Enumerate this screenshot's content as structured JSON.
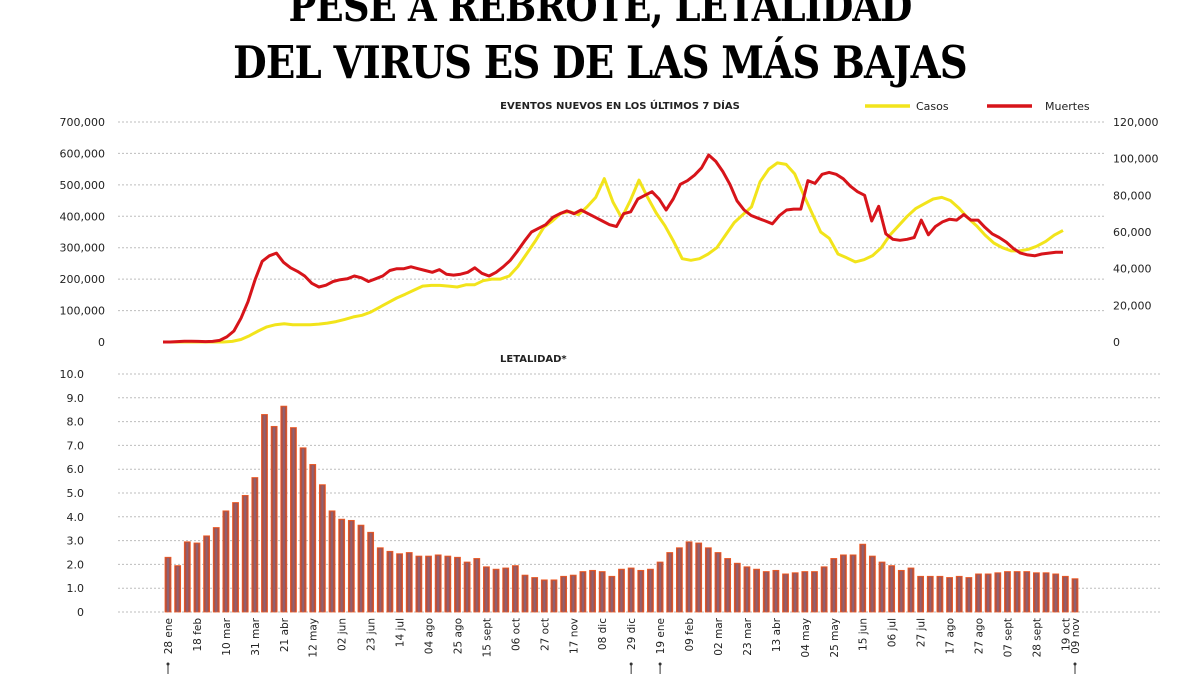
{
  "headline": {
    "line1": "PESE A REBROTE, LETALIDAD",
    "line2": "DEL VIRUS ES DE LAS MÁS BAJAS"
  },
  "chart_data": [
    {
      "type": "line",
      "title": "EVENTOS NUEVOS EN LOS ÚLTIMOS 7 DÍAS",
      "legend_position": "top-right",
      "grid": true,
      "left_axis": {
        "ylim": [
          0,
          700000
        ],
        "ticks": [
          "0",
          "100,000",
          "200,000",
          "300,000",
          "400,000",
          "500,000",
          "600,000",
          "700,000"
        ],
        "tick_values": [
          0,
          100000,
          200000,
          300000,
          400000,
          500000,
          600000,
          700000
        ]
      },
      "right_axis": {
        "ylim": [
          0,
          120000
        ],
        "ticks": [
          "0",
          "20,000",
          "40,000",
          "60,000",
          "80,000",
          "100,000",
          "120,000"
        ],
        "tick_values": [
          0,
          20000,
          40000,
          60000,
          80000,
          100000,
          120000
        ]
      },
      "series": [
        {
          "name": "Casos",
          "axis": "left",
          "color": "#f2e41b",
          "values": [
            0,
            0,
            0,
            0,
            0,
            0,
            0,
            0,
            2000,
            8000,
            20000,
            35000,
            48000,
            55000,
            58000,
            55000,
            55000,
            55000,
            57000,
            60000,
            65000,
            72000,
            80000,
            85000,
            95000,
            110000,
            125000,
            140000,
            152000,
            165000,
            178000,
            180000,
            180000,
            178000,
            175000,
            182000,
            182000,
            195000,
            200000,
            200000,
            210000,
            240000,
            280000,
            320000,
            365000,
            385000,
            410000,
            415000,
            405000,
            430000,
            460000,
            520000,
            445000,
            395000,
            450000,
            515000,
            460000,
            410000,
            370000,
            320000,
            265000,
            260000,
            265000,
            280000,
            300000,
            340000,
            380000,
            405000,
            430000,
            510000,
            550000,
            570000,
            565000,
            535000,
            470000,
            410000,
            350000,
            330000,
            280000,
            268000,
            255000,
            262000,
            275000,
            300000,
            340000,
            370000,
            400000,
            425000,
            440000,
            455000,
            460000,
            450000,
            425000,
            395000,
            370000,
            340000,
            315000,
            300000,
            290000,
            290000,
            295000,
            305000,
            320000,
            340000,
            355000
          ]
        },
        {
          "name": "Muertes",
          "axis": "right",
          "color": "#d7141a",
          "values": [
            0,
            0,
            200,
            400,
            400,
            300,
            200,
            300,
            900,
            2800,
            6000,
            13000,
            22000,
            34000,
            44000,
            47000,
            48500,
            43500,
            40500,
            38500,
            36000,
            32000,
            30000,
            31000,
            33000,
            34000,
            34500,
            36000,
            35000,
            33000,
            34500,
            36000,
            39000,
            40000,
            40000,
            41000,
            40000,
            39000,
            38000,
            39500,
            37000,
            36500,
            37000,
            38000,
            40500,
            37500,
            36000,
            38000,
            41000,
            44500,
            49500,
            55000,
            60000,
            62000,
            64000,
            68000,
            70000,
            71500,
            70000,
            72000,
            70000,
            68000,
            66000,
            64000,
            63000,
            70000,
            71000,
            78000,
            80000,
            82000,
            78000,
            72000,
            78000,
            86000,
            88000,
            91000,
            95000,
            102000,
            98500,
            93000,
            86000,
            77000,
            72000,
            69000,
            67500,
            66000,
            64500,
            69000,
            72000,
            72500,
            72500,
            88000,
            86500,
            91500,
            92500,
            91500,
            89000,
            85000,
            82000,
            80000,
            66000,
            74000,
            59000,
            56000,
            55500,
            56000,
            57000,
            66500,
            58500,
            63000,
            65500,
            67000,
            66500,
            69500,
            66500,
            66500,
            62500,
            59000,
            57000,
            54500,
            51000,
            48500,
            47500,
            47000,
            48000,
            48500,
            49000,
            49000
          ]
        }
      ]
    },
    {
      "type": "bar",
      "title": "LETALIDAD*",
      "grid": true,
      "ylim": [
        0,
        10
      ],
      "yticks": [
        "0",
        "1.0",
        "2.0",
        "3.0",
        "4.0",
        "5.0",
        "6.0",
        "7.0",
        "8.0",
        "9.0",
        "10.0"
      ],
      "ytick_values": [
        0,
        1,
        2,
        3,
        4,
        5,
        6,
        7,
        8,
        9,
        10
      ],
      "bar_color": "#b4513f",
      "bar_edge_color": "#f05a24",
      "bar_core_color": "#6f6f9e",
      "x_ticks": [
        "28 ene",
        "18 feb",
        "10 mar",
        "31 mar",
        "21 abr",
        "12 may",
        "02 jun",
        "23 jun",
        "14 jul",
        "04 ago",
        "25 ago",
        "15 sept",
        "06 oct",
        "27 oct",
        "17 nov",
        "08 dic",
        "29 dic",
        "19 ene",
        "09 feb",
        "02 mar",
        "23 mar",
        "13 abr",
        "04 may",
        "25 may",
        "15 jun",
        "06 jul",
        "27 jul",
        "17 ago",
        "27 ago",
        "07 sept",
        "28 sept",
        "19 oct",
        "09 nov"
      ],
      "x_markers": [
        "28 ene",
        "29 dic",
        "19 ene",
        "09 nov"
      ],
      "values": [
        2.3,
        1.95,
        2.95,
        2.9,
        3.2,
        3.55,
        4.25,
        4.6,
        4.9,
        5.65,
        8.3,
        7.8,
        8.65,
        7.75,
        6.9,
        6.2,
        5.35,
        4.25,
        3.9,
        3.85,
        3.65,
        3.35,
        2.7,
        2.55,
        2.45,
        2.5,
        2.35,
        2.35,
        2.4,
        2.35,
        2.3,
        2.1,
        2.25,
        1.9,
        1.8,
        1.85,
        1.95,
        1.55,
        1.45,
        1.35,
        1.35,
        1.5,
        1.55,
        1.7,
        1.75,
        1.7,
        1.5,
        1.8,
        1.85,
        1.75,
        1.8,
        2.1,
        2.5,
        2.7,
        2.95,
        2.9,
        2.7,
        2.5,
        2.25,
        2.05,
        1.9,
        1.8,
        1.7,
        1.75,
        1.6,
        1.65,
        1.7,
        1.7,
        1.9,
        2.25,
        2.4,
        2.4,
        2.85,
        2.35,
        2.1,
        1.95,
        1.75,
        1.85,
        1.5,
        1.5,
        1.5,
        1.45,
        1.5,
        1.45,
        1.6,
        1.6,
        1.65,
        1.7,
        1.7,
        1.7,
        1.65,
        1.65,
        1.6,
        1.5,
        1.4
      ]
    }
  ]
}
